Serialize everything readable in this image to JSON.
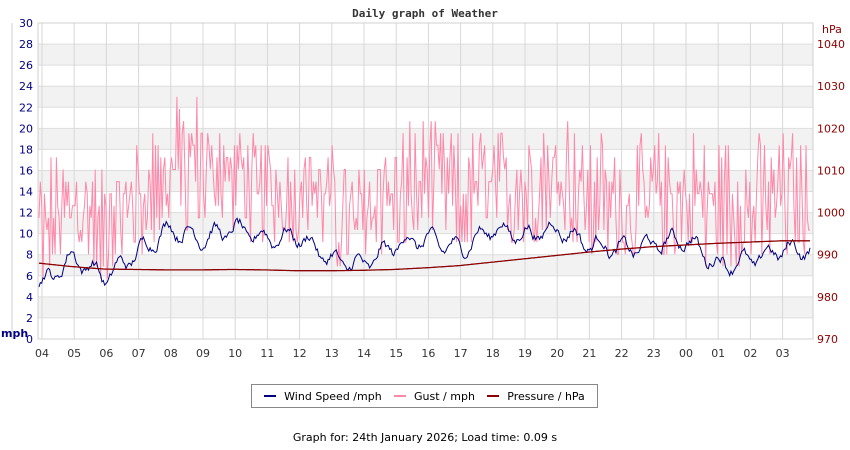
{
  "title": "Daily graph of Weather",
  "footer": "Graph for: 24th January 2026; Load time: 0.09 s",
  "axes": {
    "left": {
      "unit": "mph",
      "ticks": [
        "0",
        "2",
        "4",
        "6",
        "8",
        "10",
        "12",
        "14",
        "16",
        "18",
        "20",
        "22",
        "24",
        "26",
        "28",
        "30"
      ],
      "color": "#000080"
    },
    "right": {
      "unit": "hPa",
      "ticks": [
        "970",
        "980",
        "990",
        "1000",
        "1010",
        "1020",
        "1030",
        "1040"
      ],
      "color": "#8b0000"
    },
    "x": {
      "ticks": [
        "04",
        "05",
        "06",
        "07",
        "08",
        "09",
        "10",
        "11",
        "12",
        "13",
        "14",
        "15",
        "16",
        "17",
        "18",
        "19",
        "20",
        "21",
        "22",
        "23",
        "00",
        "01",
        "02",
        "03"
      ]
    }
  },
  "legend": [
    {
      "label": "Wind Speed /mph",
      "color": "#000080"
    },
    {
      "label": "Gust / mph",
      "color": "#ff88aa"
    },
    {
      "label": "Pressure / hPa",
      "color": "#8b0000"
    }
  ],
  "chart_data": {
    "type": "line",
    "title": "Daily graph of Weather",
    "xlabel": "",
    "ylabel": "mph",
    "ylabel_right": "hPa",
    "ylim": [
      0,
      30
    ],
    "ylim_right": [
      970,
      1045
    ],
    "grid": true,
    "legend_position": "bottom",
    "x": [
      "04",
      "05",
      "06",
      "07",
      "08",
      "09",
      "10",
      "11",
      "12",
      "13",
      "14",
      "15",
      "16",
      "17",
      "18",
      "19",
      "20",
      "21",
      "22",
      "23",
      "00",
      "01",
      "02",
      "03"
    ],
    "series": [
      {
        "name": "Wind Speed /mph",
        "axis": "left",
        "color": "#000080",
        "values": [
          5.0,
          7.8,
          5.8,
          8.2,
          10.5,
          9.5,
          10.5,
          9.5,
          9.8,
          7.5,
          7.0,
          9.0,
          9.5,
          8.5,
          10.5,
          9.8,
          10.5,
          9.0,
          8.5,
          9.0,
          9.5,
          7.0,
          7.5,
          8.5
        ]
      },
      {
        "name": "Gust / mph",
        "axis": "left",
        "color": "#ff88aa",
        "values": [
          11.5,
          13.0,
          11.5,
          13.5,
          16.0,
          17.0,
          16.5,
          14.0,
          14.5,
          13.0,
          12.0,
          14.5,
          15.0,
          14.0,
          15.0,
          14.5,
          16.0,
          14.0,
          13.0,
          13.5,
          14.0,
          12.5,
          13.0,
          13.5
        ],
        "max_values": [
          17.5,
          17.5,
          17.0,
          19.5,
          23.0,
          24.2,
          20.0,
          19.5,
          18.0,
          18.0,
          17.5,
          19.5,
          21.0,
          19.5,
          19.5,
          20.0,
          23.0,
          19.5,
          19.5,
          19.5,
          19.5,
          19.5,
          19.5,
          19.5
        ]
      },
      {
        "name": "Pressure / hPa",
        "axis": "right",
        "color": "#8b0000",
        "values": [
          988.0,
          987.2,
          986.6,
          986.5,
          986.4,
          986.4,
          986.5,
          986.4,
          986.2,
          986.2,
          986.3,
          986.5,
          986.9,
          987.4,
          988.2,
          989.0,
          989.8,
          990.6,
          991.3,
          991.9,
          992.3,
          992.7,
          993.0,
          993.3
        ]
      }
    ]
  }
}
